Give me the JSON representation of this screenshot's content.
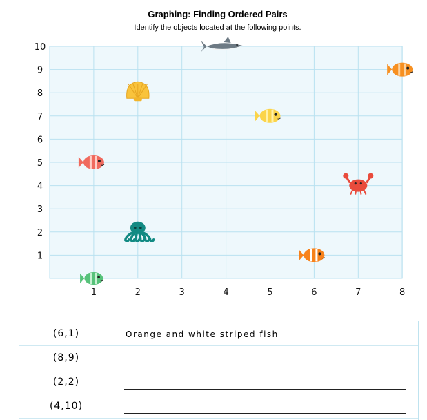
{
  "header": {
    "title": "Graphing: Finding Ordered Pairs",
    "subtitle": "Identify the objects located at the following points."
  },
  "chart_data": {
    "type": "scatter",
    "xlim": [
      0,
      8
    ],
    "ylim": [
      0,
      10
    ],
    "x_ticks": [
      "1",
      "2",
      "3",
      "4",
      "5",
      "6",
      "7",
      "8"
    ],
    "y_ticks": [
      "1",
      "2",
      "3",
      "4",
      "5",
      "6",
      "7",
      "8",
      "9",
      "10"
    ],
    "grid": true,
    "background_color": "#eef8fc",
    "grid_color": "#b9e1f0",
    "points": [
      {
        "object": "shark-icon",
        "x": 4,
        "y": 10
      },
      {
        "object": "orange-fish-icon",
        "x": 8,
        "y": 9
      },
      {
        "object": "seashell-icon",
        "x": 2,
        "y": 8
      },
      {
        "object": "yellow-fish-icon",
        "x": 5,
        "y": 7
      },
      {
        "object": "red-fish-icon",
        "x": 1,
        "y": 5
      },
      {
        "object": "crab-icon",
        "x": 7,
        "y": 4
      },
      {
        "object": "octopus-icon",
        "x": 2,
        "y": 2
      },
      {
        "object": "clownfish-icon",
        "x": 6,
        "y": 1
      },
      {
        "object": "green-fish-icon",
        "x": 1,
        "y": 0
      }
    ]
  },
  "answers": [
    {
      "pair": "(6,1)",
      "answer": "Orange and white striped fish"
    },
    {
      "pair": "(8,9)",
      "answer": ""
    },
    {
      "pair": "(2,2)",
      "answer": ""
    },
    {
      "pair": "(4,10)",
      "answer": ""
    }
  ]
}
